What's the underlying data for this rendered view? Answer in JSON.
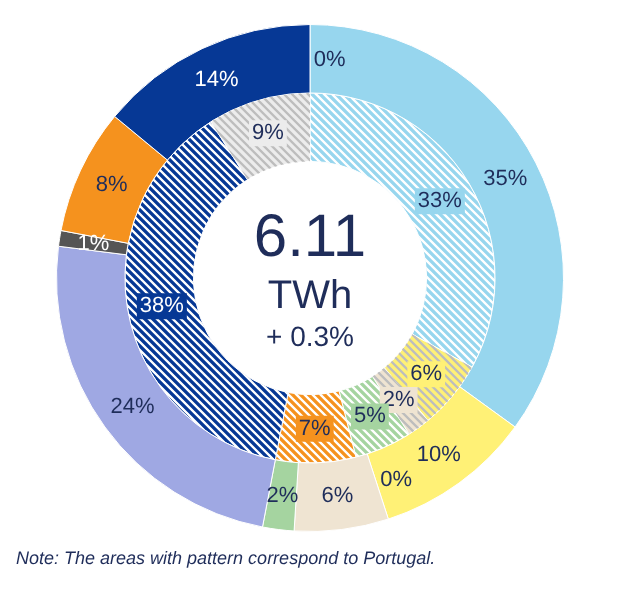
{
  "chart_data": {
    "type": "donut",
    "legend": false,
    "series": [
      {
        "values": [
          35,
          10,
          0,
          6,
          2,
          24,
          1,
          8,
          14,
          0
        ],
        "value_labels": [
          "35%",
          "10%",
          "0%",
          "6%",
          "2%",
          "24%",
          "1%",
          "8%",
          "14%",
          "0%"
        ],
        "colors": [
          "#97d6ee",
          "#fff176",
          "#e8b900",
          "#efe4d2",
          "#a5d4a0",
          "#9fa8e3",
          "#555555",
          "#f5921e",
          "#063895",
          "#ffffff"
        ]
      },
      {
        "values": [
          33,
          6,
          2,
          5,
          7,
          38,
          9
        ],
        "value_labels": [
          "33%",
          "6%",
          "2%",
          "5%",
          "7%",
          "38%",
          "9%"
        ],
        "colors": [
          "#97d6ee",
          "#fff176",
          "#efe4d2",
          "#a5d4a0",
          "#f5921e",
          "#063895",
          "#ececec"
        ]
      }
    ],
    "annotations": [
      "6.11",
      "TWh",
      "+ 0.3%",
      "Note: The  areas with pattern correspond  to Portugal."
    ]
  }
}
